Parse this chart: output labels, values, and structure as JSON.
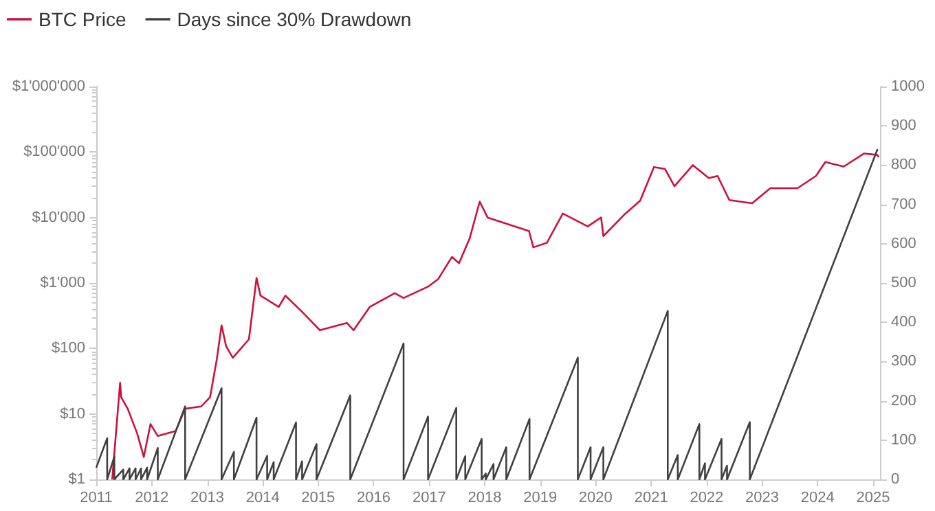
{
  "chart_data": {
    "type": "line",
    "series": [
      {
        "name": "BTC Price",
        "color": "#d0103a",
        "x": [
          "2011-04-16",
          "2011-06-07",
          "2011-06-14",
          "2011-07-27",
          "2011-09-28",
          "2011-11-10",
          "2011-12-24",
          "2012-02-10",
          "2012-06-07",
          "2012-08-08",
          "2012-11-21",
          "2013-01-19",
          "2013-03-04",
          "2013-04-05",
          "2013-05-05",
          "2013-06-18",
          "2013-10-02",
          "2013-11-21",
          "2013-12-17",
          "2014-04-16",
          "2014-05-30",
          "2014-09-13",
          "2015-01-12",
          "2015-07-09",
          "2015-08-22",
          "2015-12-06",
          "2016-05-19",
          "2016-07-16",
          "2016-12-28",
          "2017-02-28",
          "2017-05-30",
          "2017-07-16",
          "2017-09-24",
          "2017-11-29",
          "2018-01-20",
          "2018-04-23",
          "2018-10-20",
          "2018-11-17",
          "2019-02-14",
          "2019-05-30",
          "2019-11-10",
          "2020-02-06",
          "2020-02-21",
          "2020-07-05",
          "2020-10-20",
          "2021-01-19",
          "2021-04-02",
          "2021-06-03",
          "2021-10-02",
          "2022-01-15",
          "2022-03-14",
          "2022-05-30",
          "2022-10-27",
          "2023-02-24",
          "2023-08-22",
          "2023-12-21",
          "2024-02-21",
          "2024-06-21",
          "2024-11-03",
          "2025-01-30",
          "2025-02-06"
        ],
        "values": [
          1,
          30,
          18,
          12,
          5,
          2.2,
          7,
          4.6,
          5.5,
          12,
          13,
          18,
          67,
          225,
          108,
          72,
          138,
          1190,
          640,
          430,
          640,
          370,
          190,
          245,
          190,
          430,
          700,
          590,
          890,
          1140,
          2500,
          2000,
          4800,
          17500,
          10000,
          8500,
          6200,
          3500,
          4100,
          11500,
          7300,
          10000,
          5200,
          10900,
          18000,
          59000,
          55000,
          30000,
          63000,
          40000,
          43000,
          18500,
          16500,
          28000,
          28000,
          43000,
          70000,
          60000,
          95000,
          90000,
          83000
        ]
      },
      {
        "name": "Days since 30% Drawdown",
        "color": "#404040",
        "axis": "y2",
        "x": [
          "2011-01-01",
          "2011-03-14",
          "2011-03-14",
          "2011-04-30",
          "2011-04-30",
          "2011-06-28",
          "2011-06-28",
          "2011-08-08",
          "2011-08-08",
          "2011-09-17",
          "2011-09-17",
          "2011-10-23",
          "2011-10-23",
          "2011-12-02",
          "2011-12-02",
          "2012-02-10",
          "2012-02-10",
          "2012-08-08",
          "2012-08-08",
          "2013-04-05",
          "2013-04-05",
          "2013-06-25",
          "2013-06-25",
          "2013-11-21",
          "2013-11-21",
          "2014-01-30",
          "2014-01-30",
          "2014-03-14",
          "2014-03-14",
          "2014-08-08",
          "2014-08-08",
          "2014-09-17",
          "2014-09-17",
          "2014-12-21",
          "2014-12-21",
          "2015-07-31",
          "2015-07-31",
          "2016-07-16",
          "2016-07-16",
          "2016-12-24",
          "2016-12-24",
          "2017-06-28",
          "2017-06-28",
          "2017-08-26",
          "2017-08-26",
          "2017-12-12",
          "2017-12-12",
          "2018-01-08",
          "2018-01-08",
          "2018-02-28",
          "2018-02-28",
          "2018-05-23",
          "2018-05-23",
          "2018-10-23",
          "2018-10-23",
          "2019-09-06",
          "2019-09-06",
          "2019-11-29",
          "2019-11-29",
          "2020-02-21",
          "2020-02-21",
          "2021-04-20",
          "2021-04-20",
          "2021-06-25",
          "2021-06-25",
          "2021-11-14",
          "2021-11-14",
          "2021-12-21",
          "2021-12-21",
          "2022-04-09",
          "2022-04-09",
          "2022-05-15",
          "2022-05-15",
          "2022-10-12",
          "2022-10-12",
          "2025-01-30"
        ],
        "values": [
          30,
          105,
          0,
          58,
          0,
          25,
          0,
          28,
          0,
          28,
          0,
          28,
          0,
          30,
          0,
          80,
          0,
          186,
          0,
          232,
          0,
          70,
          0,
          157,
          0,
          60,
          0,
          44,
          0,
          145,
          0,
          46,
          0,
          90,
          0,
          214,
          0,
          346,
          0,
          160,
          0,
          182,
          0,
          59,
          0,
          103,
          0,
          15,
          0,
          39,
          0,
          82,
          0,
          154,
          0,
          310,
          0,
          82,
          0,
          82,
          0,
          429,
          0,
          62,
          0,
          141,
          0,
          41,
          0,
          103,
          0,
          35,
          0,
          146,
          0,
          841
        ]
      }
    ],
    "xlim": [
      "2011-01-01",
      "2025-02-15"
    ],
    "xticks": [
      "2011",
      "2012",
      "2013",
      "2014",
      "2015",
      "2016",
      "2017",
      "2018",
      "2019",
      "2020",
      "2021",
      "2022",
      "2023",
      "2024",
      "2025"
    ],
    "log": "y",
    "ylim": [
      1,
      1000000
    ],
    "yticks": [
      {
        "value": 1,
        "label": "$1"
      },
      {
        "value": 10,
        "label": "$10"
      },
      {
        "value": 100,
        "label": "$100"
      },
      {
        "value": 1000,
        "label": "$1'000"
      },
      {
        "value": 10000,
        "label": "$10'000"
      },
      {
        "value": 100000,
        "label": "$100'000"
      },
      {
        "value": 1000000,
        "label": "$1'000'000"
      }
    ],
    "y2lim": [
      0,
      1000
    ],
    "y2ticks": [
      0,
      100,
      200,
      300,
      400,
      500,
      600,
      700,
      800,
      900,
      1000
    ],
    "grid": false,
    "legend": "top left",
    "marker": "none",
    "line_style": "solid"
  }
}
